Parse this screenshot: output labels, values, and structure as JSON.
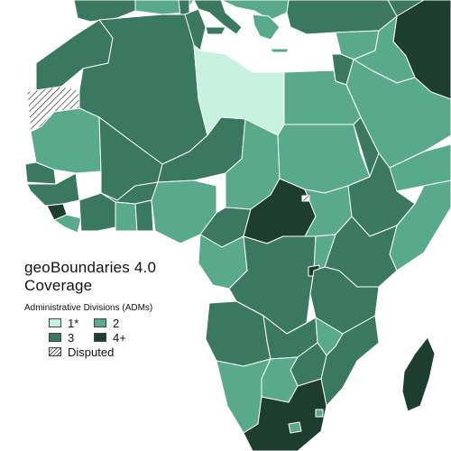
{
  "legend": {
    "title_line1": "geoBoundaries 4.0",
    "title_line2": "Coverage",
    "subtitle": "Administrative Divisions (ADMs)",
    "items": [
      {
        "label": "1*",
        "color": "#c6f2df"
      },
      {
        "label": "2",
        "color": "#58aa8a"
      },
      {
        "label": "3",
        "color": "#3a7860"
      },
      {
        "label": "4+",
        "color": "#1c3d30"
      },
      {
        "label": "Disputed",
        "color": "hatched"
      }
    ]
  },
  "colors": {
    "adm1": "#c6f2df",
    "adm2": "#58aa8a",
    "adm3": "#3a7860",
    "adm4": "#1c3d30",
    "background": "#ffffff",
    "border": "#ffffff"
  }
}
